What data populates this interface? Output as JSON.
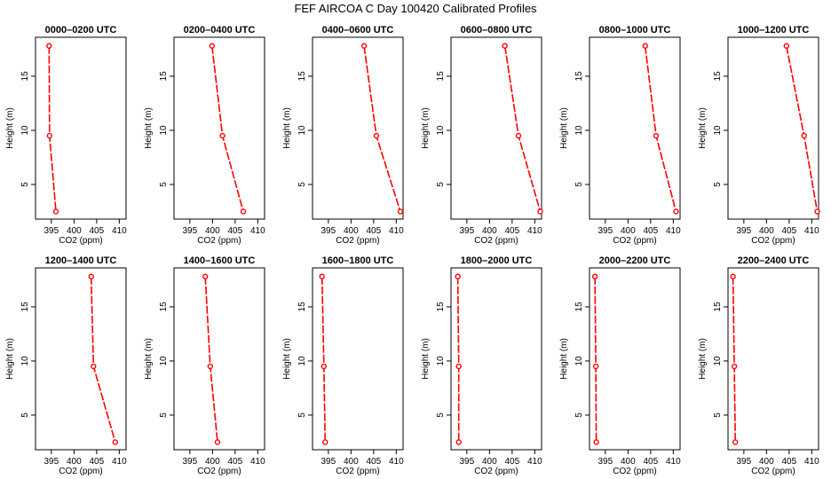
{
  "figure": {
    "title": "FEF AIRCOA C  Day 100420  Calibrated Profiles"
  },
  "colors": {
    "line": "#ff0000",
    "frame": "#000000"
  },
  "chart_data": [
    {
      "type": "line",
      "title": "0000–0200 UTC",
      "xlabel": "CO2 (ppm)",
      "ylabel": "Height (m)",
      "xlim": [
        391.5,
        411.5
      ],
      "ylim": [
        1.8,
        18.6
      ],
      "xticks": [
        395,
        400,
        405,
        410
      ],
      "yticks": [
        5,
        10,
        15
      ],
      "series": [
        {
          "name": "profile",
          "x": [
            394.5,
            394.6,
            396.0
          ],
          "y": [
            17.8,
            9.5,
            2.5
          ]
        }
      ]
    },
    {
      "type": "line",
      "title": "0200–0400 UTC",
      "xlabel": "CO2 (ppm)",
      "ylabel": "Height (m)",
      "xlim": [
        391.5,
        411.5
      ],
      "ylim": [
        1.8,
        18.6
      ],
      "xticks": [
        395,
        400,
        405,
        410
      ],
      "yticks": [
        5,
        10,
        15
      ],
      "series": [
        {
          "name": "profile",
          "x": [
            399.9,
            402.2,
            406.8
          ],
          "y": [
            17.8,
            9.5,
            2.5
          ]
        }
      ]
    },
    {
      "type": "line",
      "title": "0400–0600 UTC",
      "xlabel": "CO2 (ppm)",
      "ylabel": "Height (m)",
      "xlim": [
        391.5,
        411.5
      ],
      "ylim": [
        1.8,
        18.6
      ],
      "xticks": [
        395,
        400,
        405,
        410
      ],
      "yticks": [
        5,
        10,
        15
      ],
      "series": [
        {
          "name": "profile",
          "x": [
            402.9,
            405.6,
            410.9
          ],
          "y": [
            17.8,
            9.5,
            2.5
          ]
        }
      ]
    },
    {
      "type": "line",
      "title": "0600–0800 UTC",
      "xlabel": "CO2 (ppm)",
      "ylabel": "Height (m)",
      "xlim": [
        391.5,
        411.5
      ],
      "ylim": [
        1.8,
        18.6
      ],
      "xticks": [
        395,
        400,
        405,
        410
      ],
      "yticks": [
        5,
        10,
        15
      ],
      "series": [
        {
          "name": "profile",
          "x": [
            403.4,
            406.4,
            411.2
          ],
          "y": [
            17.8,
            9.5,
            2.5
          ]
        }
      ]
    },
    {
      "type": "line",
      "title": "0800–1000 UTC",
      "xlabel": "CO2 (ppm)",
      "ylabel": "Height (m)",
      "xlim": [
        391.5,
        411.5
      ],
      "ylim": [
        1.8,
        18.6
      ],
      "xticks": [
        395,
        400,
        405,
        410
      ],
      "yticks": [
        5,
        10,
        15
      ],
      "series": [
        {
          "name": "profile",
          "x": [
            403.8,
            406.2,
            410.6
          ],
          "y": [
            17.8,
            9.5,
            2.5
          ]
        }
      ]
    },
    {
      "type": "line",
      "title": "1000–1200 UTC",
      "xlabel": "CO2 (ppm)",
      "ylabel": "Height (m)",
      "xlim": [
        391.5,
        411.5
      ],
      "ylim": [
        1.8,
        18.6
      ],
      "xticks": [
        395,
        400,
        405,
        410
      ],
      "yticks": [
        5,
        10,
        15
      ],
      "series": [
        {
          "name": "profile",
          "x": [
            404.4,
            408.3,
            411.2
          ],
          "y": [
            17.8,
            9.5,
            2.5
          ]
        }
      ]
    },
    {
      "type": "line",
      "title": "1200–1400 UTC",
      "xlabel": "CO2 (ppm)",
      "ylabel": "Height (m)",
      "xlim": [
        391.5,
        411.5
      ],
      "ylim": [
        1.8,
        18.6
      ],
      "xticks": [
        395,
        400,
        405,
        410
      ],
      "yticks": [
        5,
        10,
        15
      ],
      "series": [
        {
          "name": "profile",
          "x": [
            403.8,
            404.3,
            409.1
          ],
          "y": [
            17.8,
            9.5,
            2.5
          ]
        }
      ]
    },
    {
      "type": "line",
      "title": "1400–1600 UTC",
      "xlabel": "CO2 (ppm)",
      "ylabel": "Height (m)",
      "xlim": [
        391.5,
        411.5
      ],
      "ylim": [
        1.8,
        18.6
      ],
      "xticks": [
        395,
        400,
        405,
        410
      ],
      "yticks": [
        5,
        10,
        15
      ],
      "series": [
        {
          "name": "profile",
          "x": [
            398.4,
            399.5,
            401.1
          ],
          "y": [
            17.8,
            9.5,
            2.5
          ]
        }
      ]
    },
    {
      "type": "line",
      "title": "1600–1800 UTC",
      "xlabel": "CO2 (ppm)",
      "ylabel": "Height (m)",
      "xlim": [
        391.5,
        411.5
      ],
      "ylim": [
        1.8,
        18.6
      ],
      "xticks": [
        395,
        400,
        405,
        410
      ],
      "yticks": [
        5,
        10,
        15
      ],
      "series": [
        {
          "name": "profile",
          "x": [
            393.6,
            394.0,
            394.3
          ],
          "y": [
            17.8,
            9.5,
            2.5
          ]
        }
      ]
    },
    {
      "type": "line",
      "title": "1800–2000 UTC",
      "xlabel": "CO2 (ppm)",
      "ylabel": "Height (m)",
      "xlim": [
        391.5,
        411.5
      ],
      "ylim": [
        1.8,
        18.6
      ],
      "xticks": [
        395,
        400,
        405,
        410
      ],
      "yticks": [
        5,
        10,
        15
      ],
      "series": [
        {
          "name": "profile",
          "x": [
            393.0,
            393.2,
            393.2
          ],
          "y": [
            17.8,
            9.5,
            2.5
          ]
        }
      ]
    },
    {
      "type": "line",
      "title": "2000–2200 UTC",
      "xlabel": "CO2 (ppm)",
      "ylabel": "Height (m)",
      "xlim": [
        391.5,
        411.5
      ],
      "ylim": [
        1.8,
        18.6
      ],
      "xticks": [
        395,
        400,
        405,
        410
      ],
      "yticks": [
        5,
        10,
        15
      ],
      "series": [
        {
          "name": "profile",
          "x": [
            392.7,
            392.9,
            393.0
          ],
          "y": [
            17.8,
            9.5,
            2.5
          ]
        }
      ]
    },
    {
      "type": "line",
      "title": "2200–2400 UTC",
      "xlabel": "CO2 (ppm)",
      "ylabel": "Height (m)",
      "xlim": [
        391.5,
        411.5
      ],
      "ylim": [
        1.8,
        18.6
      ],
      "xticks": [
        395,
        400,
        405,
        410
      ],
      "yticks": [
        5,
        10,
        15
      ],
      "series": [
        {
          "name": "profile",
          "x": [
            392.6,
            392.9,
            393.1
          ],
          "y": [
            17.8,
            9.5,
            2.5
          ]
        }
      ]
    }
  ]
}
